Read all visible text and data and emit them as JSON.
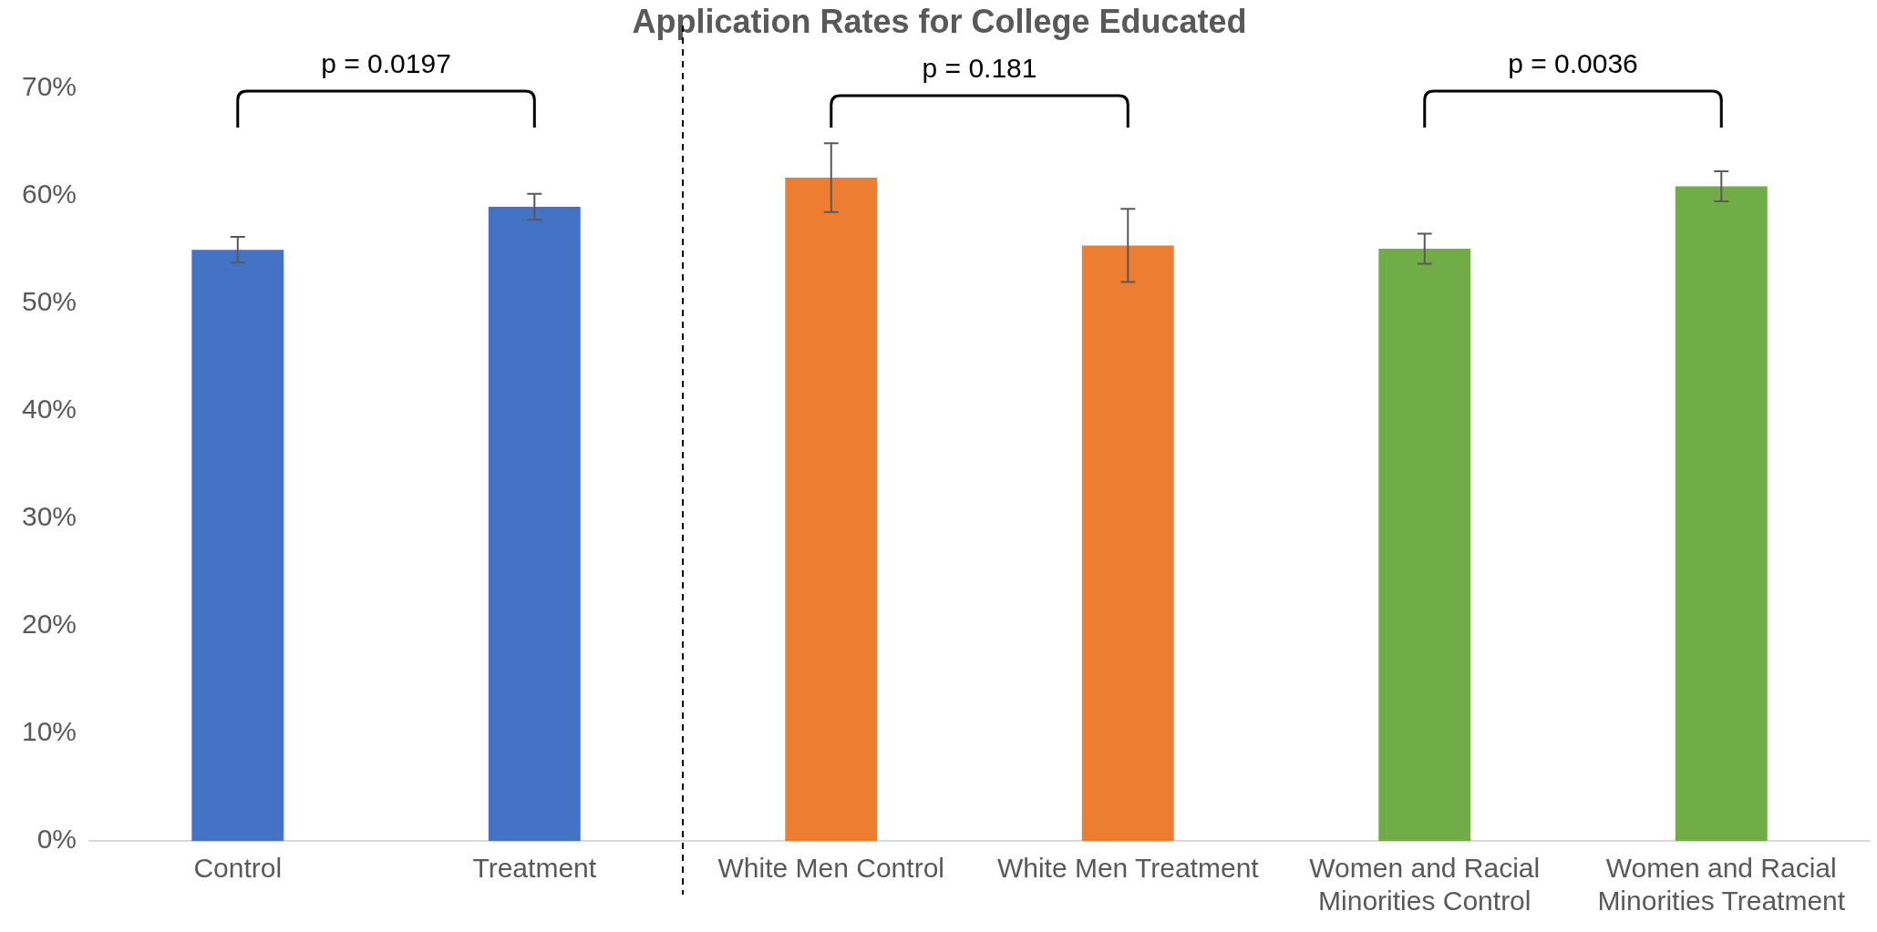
{
  "chart_data": {
    "type": "bar",
    "title": "Application Rates for College Educated",
    "categories": [
      "Control",
      "Treatment",
      "White Men Control",
      "White Men Treatment",
      "Women and Racial Minorities Control",
      "Women and Racial Minorities Treatment"
    ],
    "values": [
      55,
      59,
      61.7,
      55.4,
      55.1,
      60.9
    ],
    "errors": [
      1.2,
      1.2,
      3.2,
      3.4,
      1.4,
      1.4
    ],
    "colors": [
      "#4472c4",
      "#4472c4",
      "#ed7d31",
      "#ed7d31",
      "#70ad47",
      "#70ad47"
    ],
    "ylim": [
      0,
      70
    ],
    "yticks": [
      {
        "value": 0,
        "label": "0%"
      },
      {
        "value": 10,
        "label": "10%"
      },
      {
        "value": 20,
        "label": "20%"
      },
      {
        "value": 30,
        "label": "30%"
      },
      {
        "value": 40,
        "label": "40%"
      },
      {
        "value": 50,
        "label": "50%"
      },
      {
        "value": 60,
        "label": "60%"
      },
      {
        "value": 70,
        "label": "70%"
      }
    ],
    "annotations": [
      "p = 0.0197",
      "p = 0.181",
      "p = 0.0036"
    ],
    "grid": false,
    "legend": false
  }
}
